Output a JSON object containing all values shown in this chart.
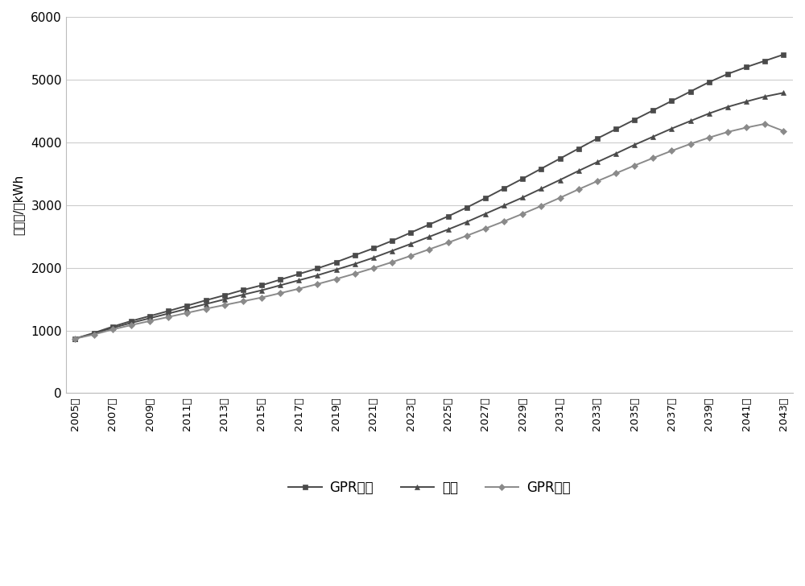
{
  "years": [
    2005,
    2006,
    2007,
    2008,
    2009,
    2010,
    2011,
    2012,
    2013,
    2014,
    2015,
    2016,
    2017,
    2018,
    2019,
    2020,
    2021,
    2022,
    2023,
    2024,
    2025,
    2026,
    2027,
    2028,
    2029,
    2030,
    2031,
    2032,
    2033,
    2034,
    2035,
    2036,
    2037,
    2038,
    2039,
    2040,
    2041,
    2042,
    2043
  ],
  "gpr_upper": [
    870,
    960,
    1060,
    1150,
    1230,
    1310,
    1395,
    1480,
    1560,
    1645,
    1720,
    1810,
    1900,
    1990,
    2090,
    2200,
    2310,
    2430,
    2560,
    2690,
    2820,
    2960,
    3110,
    3265,
    3420,
    3580,
    3740,
    3900,
    4060,
    4210,
    4360,
    4510,
    4660,
    4810,
    4960,
    5090,
    5200,
    5300,
    5400
  ],
  "gpr_mid": [
    870,
    950,
    1040,
    1120,
    1195,
    1270,
    1345,
    1420,
    1495,
    1570,
    1640,
    1720,
    1800,
    1880,
    1970,
    2060,
    2160,
    2270,
    2380,
    2495,
    2610,
    2730,
    2860,
    2990,
    3120,
    3260,
    3400,
    3545,
    3685,
    3820,
    3960,
    4090,
    4220,
    4340,
    4460,
    4565,
    4650,
    4730,
    4790
  ],
  "gpr_lower": [
    870,
    935,
    1015,
    1085,
    1150,
    1215,
    1280,
    1345,
    1405,
    1465,
    1525,
    1595,
    1665,
    1740,
    1820,
    1905,
    1995,
    2090,
    2190,
    2295,
    2400,
    2510,
    2625,
    2740,
    2860,
    2985,
    3115,
    3250,
    3380,
    3505,
    3630,
    3750,
    3865,
    3975,
    4075,
    4165,
    4235,
    4295,
    4180
  ],
  "ylabel": "用电量/亼kWh",
  "legend_upper": "GPR上界",
  "legend_mid": "中值",
  "legend_lower": "GPR下界",
  "ylim": [
    0,
    6000
  ],
  "yticks": [
    0,
    1000,
    2000,
    3000,
    4000,
    5000,
    6000
  ],
  "color_upper": "#4a4a4a",
  "color_mid": "#4a4a4a",
  "color_lower": "#8a8a8a",
  "marker_upper": "s",
  "marker_mid": "^",
  "marker_lower": "D",
  "linewidth": 1.4,
  "markersize": 5,
  "bg_color": "#ffffff",
  "grid_color": "#cccccc",
  "tick_years": [
    2005,
    2007,
    2009,
    2011,
    2013,
    2015,
    2017,
    2019,
    2021,
    2023,
    2025,
    2027,
    2029,
    2031,
    2033,
    2035,
    2037,
    2039,
    2041,
    2043
  ]
}
